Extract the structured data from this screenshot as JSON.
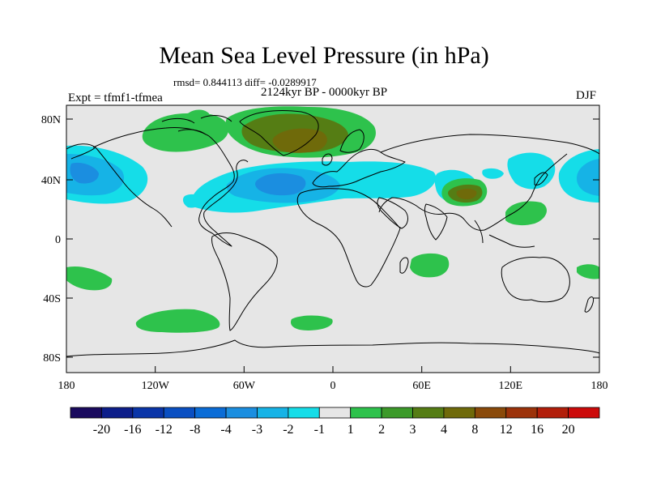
{
  "title": "Mean Sea Level Pressure (in hPa)",
  "stats_text": "rmsd= 0.844113 diff= -0.0289917",
  "period_text": "2124kyr BP - 0000kyr BP",
  "experiment_text": "Expt = tfmf1-tfmea",
  "season": "DJF",
  "axes": {
    "lat_labels": [
      "80N",
      "40N",
      "0",
      "40S",
      "80S"
    ],
    "lon_labels": [
      "180",
      "120W",
      "60W",
      "0",
      "60E",
      "120E",
      "180"
    ]
  },
  "colorbar": {
    "colors": [
      "#1a0a5e",
      "#0d1e8a",
      "#0a35a8",
      "#0a4fc2",
      "#0a6cd6",
      "#1b8ee0",
      "#16b3e6",
      "#15dde8",
      "#e6e6e6",
      "#2ec24c",
      "#3c9a2a",
      "#557d14",
      "#6f6a0a",
      "#8a4a0a",
      "#9c320a",
      "#b21e0a",
      "#cc0a0a"
    ],
    "labels": [
      "-20",
      "-16",
      "-12",
      "-8",
      "-4",
      "-3",
      "-2",
      "-1",
      "1",
      "2",
      "3",
      "4",
      "8",
      "12",
      "16",
      "20"
    ]
  },
  "colors": {
    "ocean_land_bg": "#e6e6e6",
    "cyan_light": "#15dde8",
    "cyan_mid": "#16b3e6",
    "blue_mid": "#1b8ee0",
    "green": "#2ec24c",
    "green_dark": "#3c9a2a",
    "olive": "#557d14",
    "brown": "#6f6a0a"
  }
}
